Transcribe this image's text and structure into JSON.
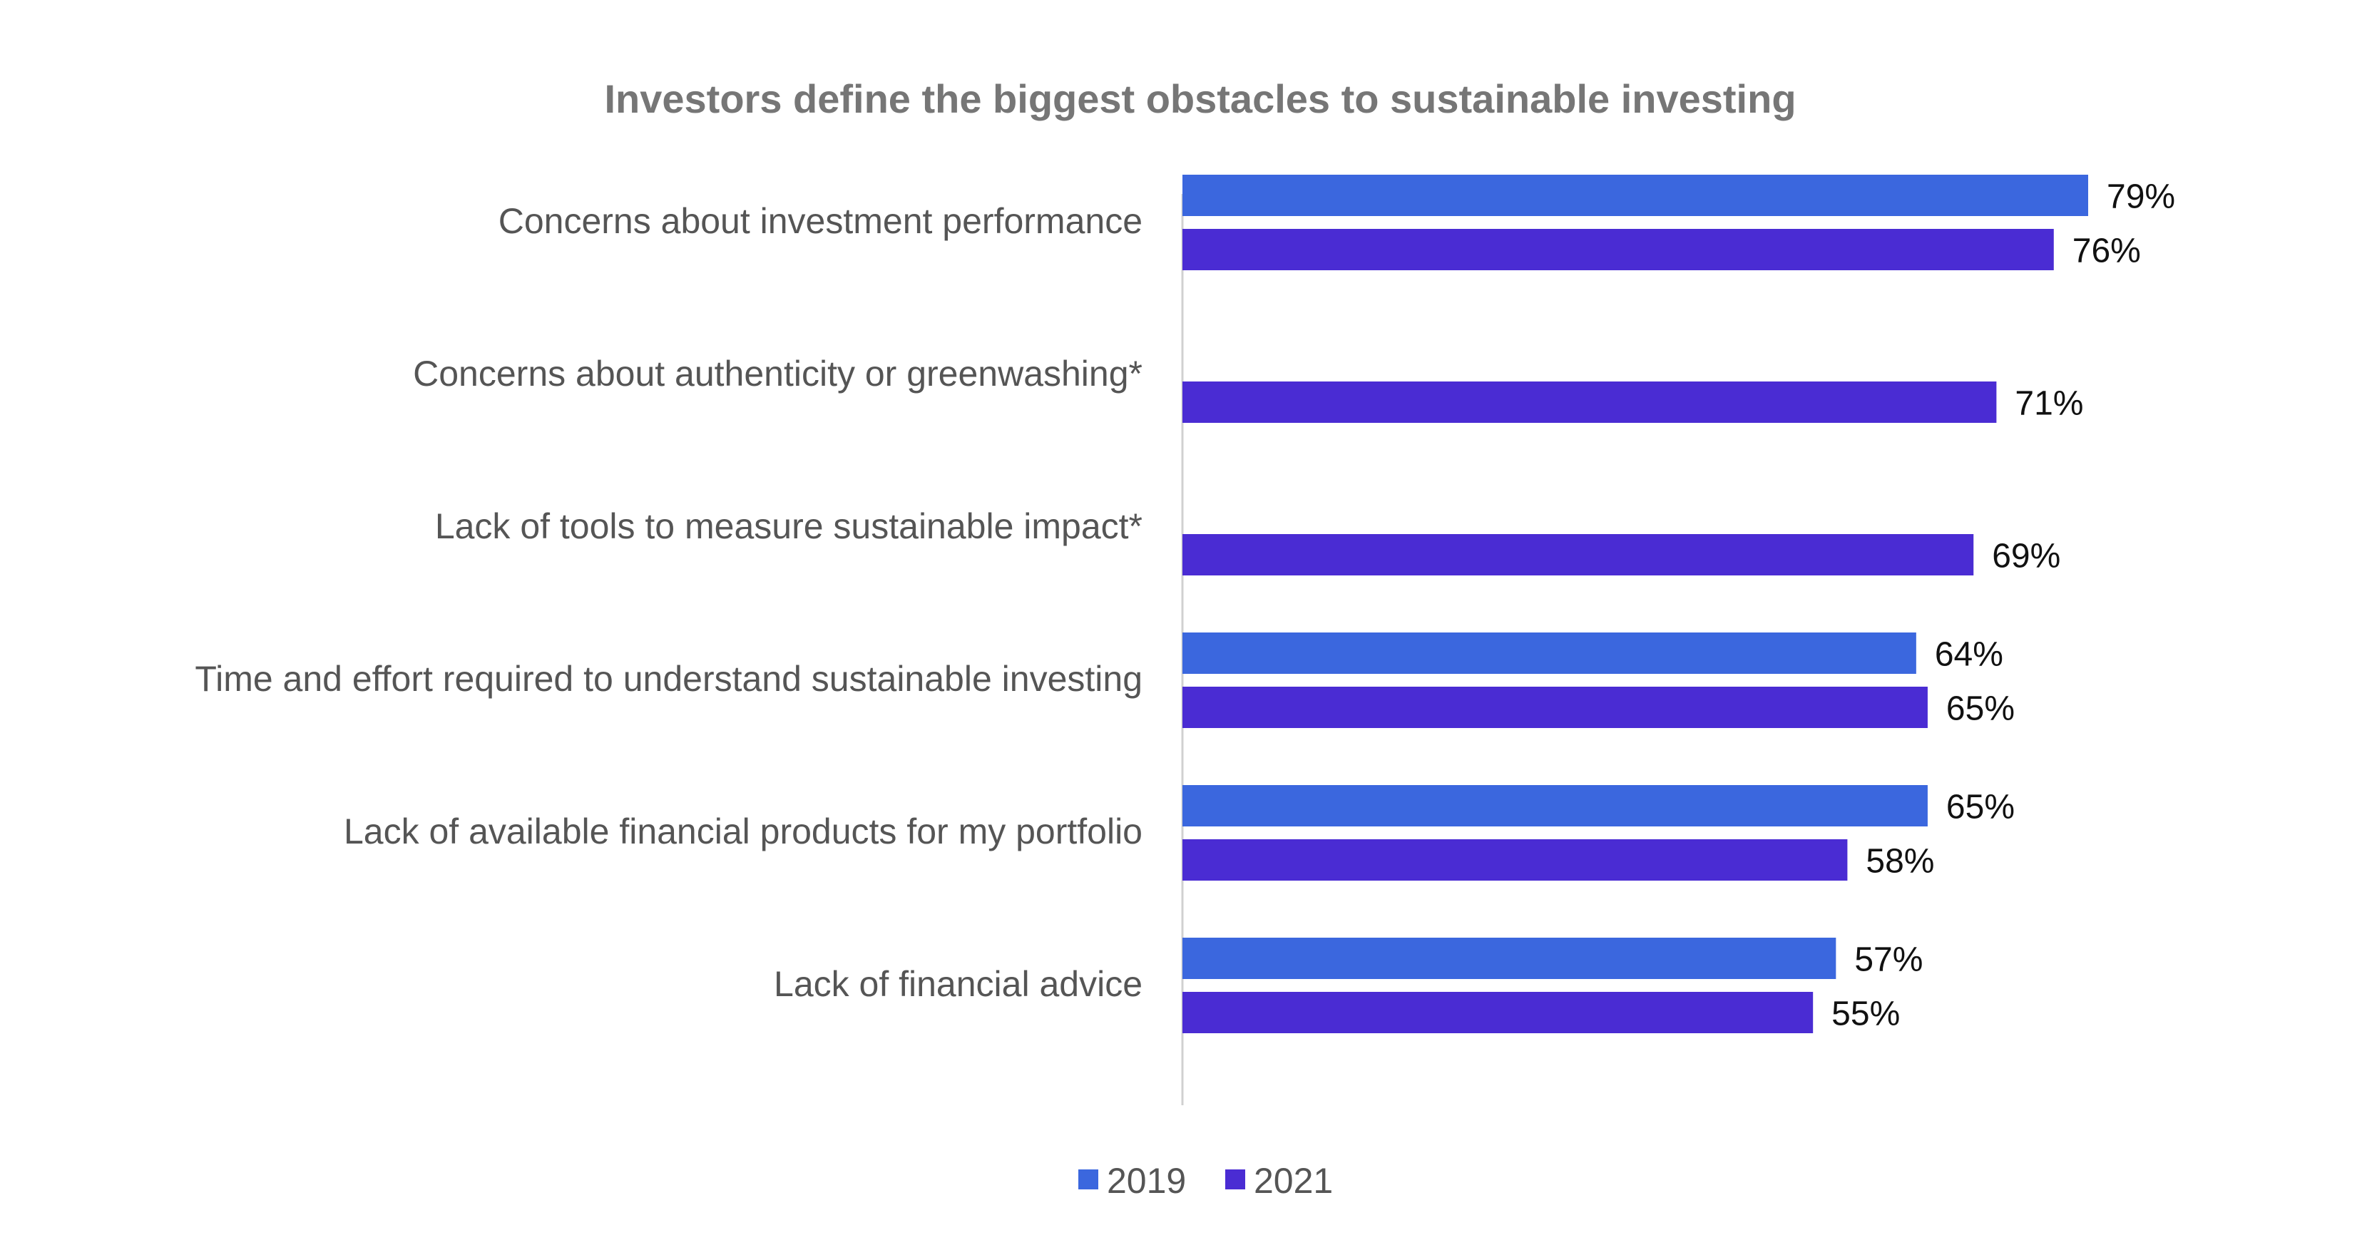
{
  "colors": {
    "series_2019": "#3B67DE",
    "series_2021": "#4A2CD3",
    "axis_line": "#D0D0D0",
    "title": "#767676",
    "label": "#555555",
    "value_text": "#111111"
  },
  "chart_data": {
    "type": "bar",
    "orientation": "horizontal",
    "title": "Investors define the biggest obstacles to sustainable investing",
    "xlabel": "",
    "ylabel": "",
    "xlim": [
      0,
      100
    ],
    "grid": false,
    "legend_position": "bottom",
    "categories": [
      "Concerns about investment performance",
      "Concerns about authenticity or greenwashing*",
      "Lack of tools to measure sustainable impact*",
      "Time and effort required to understand sustainable investing",
      "Lack of available financial products for my portfolio",
      "Lack of financial advice"
    ],
    "series": [
      {
        "name": "2019",
        "color": "#3B67DE",
        "values": [
          79,
          null,
          null,
          64,
          65,
          57
        ],
        "labels": [
          "79%",
          "",
          "",
          "64%",
          "65%",
          "57%"
        ]
      },
      {
        "name": "2021",
        "color": "#4A2CD3",
        "values": [
          76,
          71,
          69,
          65,
          58,
          55
        ],
        "labels": [
          "76%",
          "71%",
          "69%",
          "65%",
          "58%",
          "55%"
        ]
      }
    ]
  }
}
